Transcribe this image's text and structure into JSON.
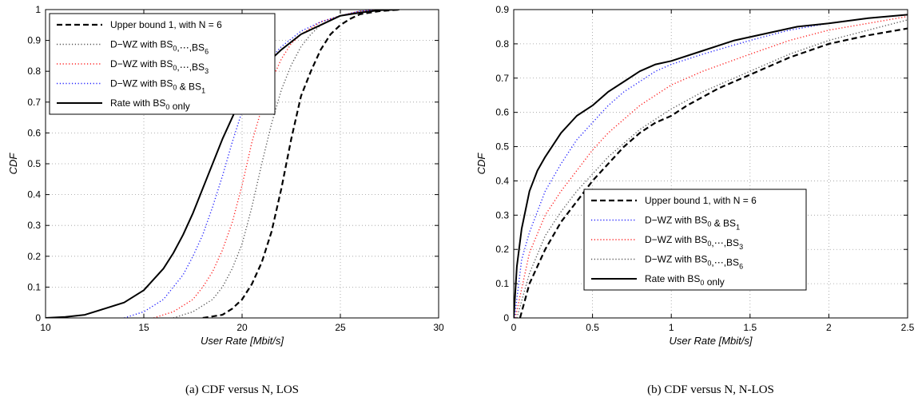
{
  "chart_data": [
    {
      "type": "line",
      "caption": "(a) CDF versus N, LOS",
      "xlabel": "User Rate [Mbit/s]",
      "ylabel": "CDF",
      "xlim": [
        10,
        30
      ],
      "ylim": [
        0,
        1
      ],
      "xticks": [
        "10",
        "15",
        "20",
        "25",
        "30"
      ],
      "yticks": [
        "0",
        "0.1",
        "0.2",
        "0.3",
        "0.4",
        "0.5",
        "0.6",
        "0.7",
        "0.8",
        "0.9",
        "1"
      ],
      "grid": true,
      "legend_position": "top-left",
      "legend": [
        {
          "style": "dashed-black",
          "pre": "Upper bound 1, with N = 6"
        },
        {
          "style": "dotted-gray",
          "pre": "D−WZ with BS",
          "sub1": "0",
          "mid": ",⋯,BS",
          "sub2": "6"
        },
        {
          "style": "dotted-red",
          "pre": "D−WZ with BS",
          "sub1": "0",
          "mid": ",⋯,BS",
          "sub2": "3"
        },
        {
          "style": "dotted-blue",
          "pre": "D−WZ with BS",
          "sub1": "0",
          "mid": " & BS",
          "sub2": "1"
        },
        {
          "style": "solid-black",
          "pre": "Rate with BS",
          "sub1": "0",
          "mid": " only",
          "sub2": ""
        }
      ],
      "series": [
        {
          "style": "dashed-black",
          "x": [
            18,
            19,
            19.5,
            20,
            20.5,
            21,
            21.5,
            22,
            22.5,
            23,
            23.5,
            24,
            24.5,
            25,
            25.5,
            26,
            27,
            28
          ],
          "y": [
            0,
            0.01,
            0.03,
            0.06,
            0.11,
            0.18,
            0.28,
            0.42,
            0.58,
            0.72,
            0.8,
            0.87,
            0.92,
            0.95,
            0.97,
            0.985,
            0.995,
            1
          ]
        },
        {
          "style": "dotted-gray",
          "x": [
            16.5,
            17.5,
            18.5,
            19,
            19.5,
            20,
            20.5,
            21,
            21.5,
            22,
            22.5,
            23,
            23.5,
            24,
            25,
            26,
            27.5
          ],
          "y": [
            0,
            0.02,
            0.06,
            0.1,
            0.16,
            0.24,
            0.36,
            0.5,
            0.63,
            0.74,
            0.82,
            0.88,
            0.92,
            0.95,
            0.98,
            0.995,
            1
          ]
        },
        {
          "style": "dotted-red",
          "x": [
            15.5,
            16.5,
            17.5,
            18,
            18.5,
            19,
            19.5,
            20,
            20.5,
            21,
            21.5,
            22,
            22.5,
            23,
            24,
            25,
            26,
            27.5
          ],
          "y": [
            0,
            0.02,
            0.06,
            0.1,
            0.15,
            0.22,
            0.31,
            0.43,
            0.57,
            0.68,
            0.77,
            0.84,
            0.89,
            0.92,
            0.96,
            0.98,
            0.995,
            1
          ]
        },
        {
          "style": "dotted-blue",
          "x": [
            14,
            15,
            16,
            17,
            17.5,
            18,
            18.5,
            19,
            19.5,
            20,
            20.5,
            21,
            22,
            23,
            24,
            25,
            26,
            27
          ],
          "y": [
            0,
            0.02,
            0.06,
            0.14,
            0.2,
            0.27,
            0.36,
            0.46,
            0.57,
            0.67,
            0.75,
            0.81,
            0.88,
            0.93,
            0.96,
            0.98,
            0.995,
            1
          ]
        },
        {
          "style": "solid-black",
          "x": [
            10,
            11,
            12,
            13,
            14,
            15,
            16,
            16.5,
            17,
            17.5,
            18,
            18.5,
            19,
            19.5,
            20,
            20.5,
            21,
            22,
            23,
            24,
            25,
            26,
            27,
            28
          ],
          "y": [
            0,
            0.003,
            0.01,
            0.03,
            0.05,
            0.09,
            0.16,
            0.21,
            0.27,
            0.34,
            0.42,
            0.5,
            0.58,
            0.65,
            0.72,
            0.77,
            0.81,
            0.87,
            0.92,
            0.95,
            0.98,
            0.99,
            0.998,
            1
          ]
        }
      ]
    },
    {
      "type": "line",
      "caption": "(b) CDF versus N, N-LOS",
      "xlabel": "User Rate [Mbit/s]",
      "ylabel": "CDF",
      "xlim": [
        0,
        2.5
      ],
      "ylim": [
        0,
        0.9
      ],
      "xticks": [
        "0",
        "0.5",
        "1",
        "1.5",
        "2",
        "2.5"
      ],
      "yticks": [
        "0",
        "0.1",
        "0.2",
        "0.3",
        "0.4",
        "0.5",
        "0.6",
        "0.7",
        "0.8",
        "0.9"
      ],
      "grid": true,
      "legend_position": "bottom-center",
      "legend": [
        {
          "style": "dashed-black",
          "pre": "Upper bound 1, with N = 6"
        },
        {
          "style": "dotted-blue",
          "pre": "D−WZ with BS",
          "sub1": "0",
          "mid": " & BS",
          "sub2": "1"
        },
        {
          "style": "dotted-red",
          "pre": "D−WZ with BS",
          "sub1": "0",
          "mid": ",⋯,BS",
          "sub2": "3"
        },
        {
          "style": "dotted-gray",
          "pre": "D−WZ with BS",
          "sub1": "0",
          "mid": ",⋯,BS",
          "sub2": "6"
        },
        {
          "style": "solid-black",
          "pre": "Rate with BS",
          "sub1": "0",
          "mid": " only",
          "sub2": ""
        }
      ],
      "series": [
        {
          "style": "dashed-black",
          "x": [
            0.04,
            0.1,
            0.2,
            0.3,
            0.4,
            0.5,
            0.6,
            0.7,
            0.8,
            0.9,
            1,
            1.1,
            1.2,
            1.3,
            1.5,
            1.75,
            2,
            2.25,
            2.5
          ],
          "y": [
            0,
            0.1,
            0.2,
            0.28,
            0.34,
            0.4,
            0.45,
            0.5,
            0.54,
            0.57,
            0.59,
            0.62,
            0.645,
            0.67,
            0.71,
            0.76,
            0.8,
            0.825,
            0.845
          ]
        },
        {
          "style": "dotted-gray",
          "x": [
            0.02,
            0.1,
            0.2,
            0.3,
            0.4,
            0.5,
            0.6,
            0.7,
            0.8,
            0.9,
            1,
            1.2,
            1.5,
            1.75,
            2,
            2.25,
            2.5
          ],
          "y": [
            0,
            0.13,
            0.24,
            0.31,
            0.37,
            0.42,
            0.47,
            0.51,
            0.55,
            0.58,
            0.61,
            0.66,
            0.72,
            0.77,
            0.81,
            0.84,
            0.87
          ]
        },
        {
          "style": "dotted-red",
          "x": [
            0.01,
            0.1,
            0.2,
            0.3,
            0.4,
            0.5,
            0.6,
            0.7,
            0.8,
            0.9,
            1,
            1.2,
            1.5,
            1.75,
            2,
            2.25,
            2.5
          ],
          "y": [
            0,
            0.19,
            0.3,
            0.37,
            0.43,
            0.49,
            0.54,
            0.58,
            0.62,
            0.65,
            0.68,
            0.72,
            0.77,
            0.81,
            0.84,
            0.86,
            0.88
          ]
        },
        {
          "style": "dotted-blue",
          "x": [
            0.005,
            0.05,
            0.1,
            0.2,
            0.3,
            0.4,
            0.5,
            0.6,
            0.7,
            0.8,
            0.9,
            1,
            1.2,
            1.5,
            1.75,
            2,
            2.25,
            2.5
          ],
          "y": [
            0,
            0.17,
            0.25,
            0.37,
            0.45,
            0.52,
            0.57,
            0.62,
            0.66,
            0.69,
            0.72,
            0.74,
            0.77,
            0.81,
            0.84,
            0.86,
            0.875,
            0.885
          ]
        },
        {
          "style": "solid-black",
          "x": [
            0,
            0.02,
            0.05,
            0.1,
            0.15,
            0.2,
            0.3,
            0.4,
            0.5,
            0.6,
            0.7,
            0.8,
            0.9,
            1,
            1.2,
            1.4,
            1.6,
            1.8,
            2,
            2.25,
            2.5
          ],
          "y": [
            0,
            0.15,
            0.26,
            0.37,
            0.43,
            0.47,
            0.54,
            0.59,
            0.62,
            0.66,
            0.69,
            0.72,
            0.74,
            0.75,
            0.78,
            0.81,
            0.83,
            0.85,
            0.86,
            0.875,
            0.885
          ]
        }
      ]
    }
  ]
}
